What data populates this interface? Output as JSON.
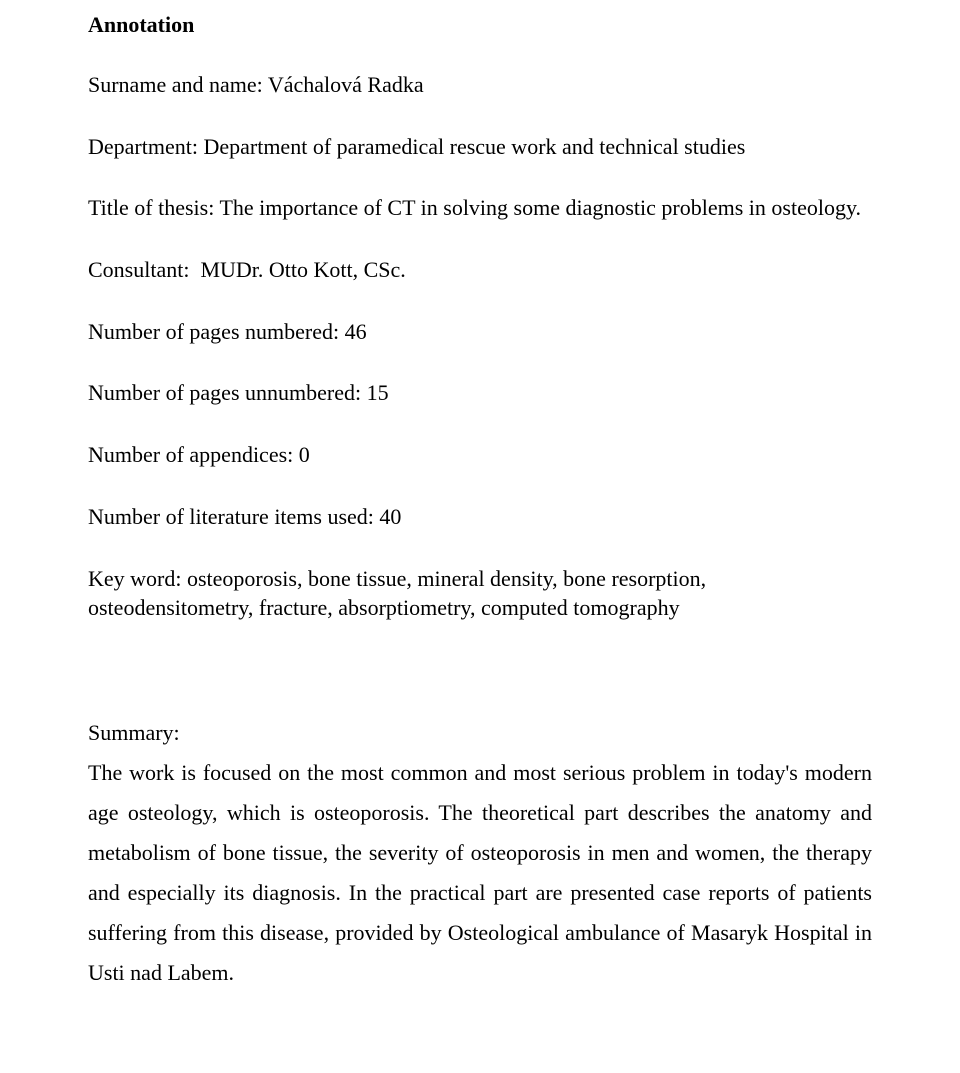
{
  "heading": "Annotation",
  "surname_label": "Surname and name:",
  "surname_value": "Váchalová Radka",
  "department_label": "Department:",
  "department_value": "Department of paramedical rescue work and technical studies",
  "thesis_label": "Title of thesis:",
  "thesis_value": "The importance of CT in solving some diagnostic problems in osteology.",
  "consultant_label": "Consultant:",
  "consultant_value": "MUDr. Otto Kott, CSc.",
  "pages_numbered_label": "Number of pages numbered:",
  "pages_numbered_value": "46",
  "pages_unnumbered_label": "Number of pages unnumbered:",
  "pages_unnumbered_value": "15",
  "appendices_label": "Number of appendices:",
  "appendices_value": "0",
  "literature_label": "Number of literature items used:",
  "literature_value": "40",
  "keyword_label": "Key word:",
  "keyword_value": "osteoporosis, bone tissue, mineral density, bone resorption, osteodensitometry, fracture, absorptiometry, computed tomography",
  "summary_label": "Summary:",
  "summary_text": "The work is focused on the most common and most serious problem in today's modern age osteology, which is osteoporosis. The theoretical part describes the anatomy and metabolism of bone tissue, the severity of osteoporosis in men and women, the therapy and especially its diagnosis. In the practical part are presented case reports of patients suffering from this disease, provided by Osteological ambulance of Masaryk Hospital in Usti nad Labem."
}
